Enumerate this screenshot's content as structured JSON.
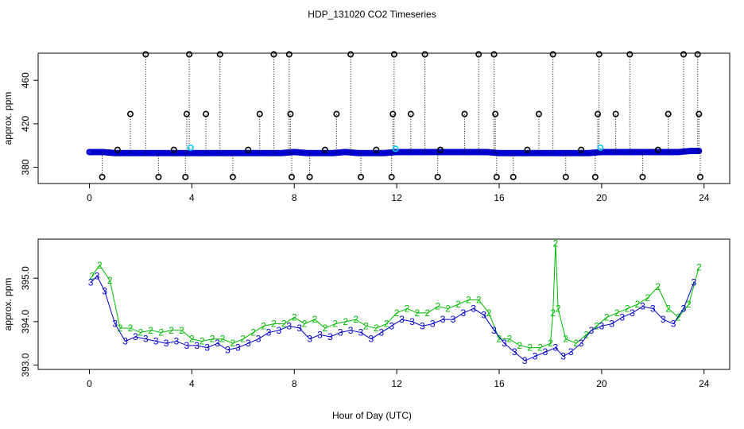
{
  "figure": {
    "title": "HDP_131020  CO2 Timeseries",
    "xlabel": "Hour of Day (UTC)"
  },
  "chart_data": [
    {
      "type": "scatter",
      "panel": "top",
      "title": "HDP_131020  CO2 Timeseries",
      "xlabel": "",
      "ylabel": "approx. ppm",
      "xlim": [
        -2,
        25
      ],
      "ylim": [
        365,
        485
      ],
      "xticks": [
        0,
        4,
        8,
        12,
        16,
        20,
        24
      ],
      "yticks": [
        380,
        420,
        460
      ],
      "grid": false,
      "colors": {
        "baseline": "#0000cc",
        "highlight": "#00ccee",
        "outlier": "#000000",
        "drop_line": "#000000"
      },
      "baseline": {
        "x": [
          0.0,
          0.5,
          1.0,
          1.5,
          2.0,
          2.5,
          3.0,
          3.5,
          4.0,
          4.5,
          5.0,
          5.5,
          6.0,
          6.5,
          7.0,
          7.5,
          8.0,
          8.5,
          9.0,
          9.5,
          10.0,
          10.5,
          11.0,
          11.5,
          12.0,
          12.5,
          13.0,
          13.5,
          14.0,
          14.5,
          15.0,
          15.5,
          16.0,
          16.5,
          17.0,
          17.5,
          18.0,
          18.5,
          19.0,
          19.5,
          20.0,
          20.5,
          21.0,
          21.5,
          22.0,
          22.5,
          23.0,
          23.5,
          23.8
        ],
        "y": [
          394,
          394,
          393,
          393,
          393,
          393,
          393,
          393,
          393,
          393,
          393,
          393,
          393,
          393,
          393,
          393,
          394,
          393,
          393,
          393,
          394,
          393,
          393,
          393,
          394,
          394,
          394,
          394,
          394,
          394,
          394,
          394,
          393,
          393,
          393,
          393,
          393,
          393,
          393,
          393,
          394,
          394,
          394,
          394,
          394,
          394,
          394,
          395,
          395
        ]
      },
      "highlights": {
        "x": [
          3.95,
          11.95,
          19.95
        ],
        "y": [
          398,
          397,
          398
        ]
      },
      "outliers_high": {
        "x": [
          2.2,
          3.9,
          5.1,
          7.2,
          7.8,
          10.2,
          11.9,
          13.1,
          15.2,
          15.8,
          18.1,
          19.9,
          21.1,
          23.2,
          23.75
        ],
        "y": [
          484,
          484,
          484,
          484,
          484,
          484,
          484,
          484,
          484,
          484,
          484,
          484,
          484,
          484,
          484
        ]
      },
      "outliers_mid": {
        "x": [
          1.6,
          3.8,
          4.55,
          6.65,
          7.85,
          9.65,
          11.85,
          12.55,
          14.65,
          15.85,
          17.55,
          19.85,
          20.55,
          22.6,
          23.8
        ],
        "y": [
          429,
          429,
          429,
          429,
          429,
          429,
          429,
          429,
          429,
          429,
          429,
          429,
          429,
          429,
          429
        ]
      },
      "outliers_low": {
        "x": [
          0.5,
          2.7,
          3.75,
          5.6,
          7.9,
          8.6,
          10.6,
          11.8,
          13.6,
          15.9,
          16.55,
          18.6,
          19.75,
          21.6,
          23.85
        ],
        "y": [
          371,
          371,
          371,
          371,
          371,
          371,
          371,
          371,
          371,
          371,
          371,
          371,
          371,
          371,
          371
        ]
      },
      "outliers_small": {
        "x": [
          1.1,
          3.3,
          6.2,
          9.2,
          11.2,
          13.7,
          17.1,
          19.2,
          22.2
        ],
        "y": [
          396,
          396,
          396,
          396,
          396,
          396,
          396,
          396,
          396
        ]
      }
    },
    {
      "type": "scatter",
      "panel": "bottom",
      "xlabel": "Hour of Day (UTC)",
      "ylabel": "approx. ppm",
      "xlim": [
        -2,
        25
      ],
      "ylim": [
        392.9,
        395.9
      ],
      "xticks": [
        0,
        4,
        8,
        12,
        16,
        20,
        24
      ],
      "yticks": [
        393.0,
        394.0,
        395.0
      ],
      "grid": false,
      "colors": {
        "2": "#00bb00",
        "3": "#0000cc"
      },
      "series": [
        {
          "marker": "2",
          "x": [
            0.1,
            0.4,
            0.8,
            1.2,
            1.6,
            2.0,
            2.4,
            2.8,
            3.2,
            3.6,
            4.0,
            4.4,
            4.8,
            5.2,
            5.6,
            6.0,
            6.4,
            6.8,
            7.2,
            7.6,
            8.0,
            8.4,
            8.8,
            9.2,
            9.6,
            10.0,
            10.4,
            10.8,
            11.2,
            11.6,
            12.0,
            12.4,
            12.8,
            13.2,
            13.6,
            14.0,
            14.4,
            14.8,
            15.2,
            15.6,
            16.0,
            16.4,
            16.8,
            17.2,
            17.6,
            18.0,
            18.1,
            18.2,
            18.3,
            18.6,
            19.0,
            19.4,
            19.8,
            20.2,
            20.6,
            21.0,
            21.4,
            21.8,
            22.2,
            22.6,
            23.0,
            23.4,
            23.8
          ],
          "y": [
            395.05,
            395.3,
            394.95,
            393.85,
            393.85,
            393.75,
            393.8,
            393.75,
            393.8,
            393.8,
            393.6,
            393.55,
            393.6,
            393.6,
            393.5,
            393.6,
            393.75,
            393.9,
            393.95,
            393.95,
            394.1,
            393.95,
            394.05,
            393.85,
            393.95,
            394.0,
            394.05,
            393.9,
            393.85,
            393.95,
            394.2,
            394.3,
            394.2,
            394.2,
            394.35,
            394.3,
            394.4,
            394.5,
            394.5,
            394.2,
            393.6,
            393.6,
            393.45,
            393.4,
            393.4,
            393.5,
            394.2,
            395.8,
            394.3,
            393.6,
            393.5,
            393.7,
            393.9,
            394.1,
            394.2,
            394.3,
            394.4,
            394.55,
            394.8,
            394.3,
            394.1,
            394.4,
            395.25
          ]
        },
        {
          "marker": "3",
          "x": [
            0.05,
            0.3,
            0.6,
            1.0,
            1.4,
            1.8,
            2.2,
            2.6,
            3.0,
            3.4,
            3.8,
            4.2,
            4.6,
            5.0,
            5.4,
            5.8,
            6.2,
            6.6,
            7.0,
            7.4,
            7.8,
            8.2,
            8.6,
            9.0,
            9.4,
            9.8,
            10.2,
            10.6,
            11.0,
            11.4,
            11.8,
            12.2,
            12.6,
            13.0,
            13.4,
            13.8,
            14.2,
            14.6,
            15.0,
            15.4,
            15.8,
            16.2,
            16.6,
            17.0,
            17.4,
            17.8,
            18.2,
            18.5,
            18.8,
            19.2,
            19.6,
            20.0,
            20.4,
            20.8,
            21.2,
            21.6,
            22.0,
            22.4,
            22.8,
            23.2,
            23.6
          ],
          "y": [
            394.9,
            395.05,
            394.7,
            393.95,
            393.55,
            393.65,
            393.6,
            393.55,
            393.5,
            393.55,
            393.45,
            393.45,
            393.4,
            393.5,
            393.35,
            393.4,
            393.5,
            393.6,
            393.75,
            393.8,
            393.9,
            393.85,
            393.6,
            393.7,
            393.65,
            393.75,
            393.8,
            393.75,
            393.6,
            393.75,
            393.9,
            394.05,
            394.0,
            393.9,
            393.95,
            394.05,
            394.05,
            394.2,
            394.3,
            394.15,
            393.8,
            393.5,
            393.3,
            393.1,
            393.2,
            393.3,
            393.4,
            393.2,
            393.3,
            393.5,
            393.8,
            393.9,
            393.95,
            394.1,
            394.2,
            394.35,
            394.3,
            394.05,
            393.95,
            394.3,
            394.9
          ]
        }
      ]
    }
  ]
}
